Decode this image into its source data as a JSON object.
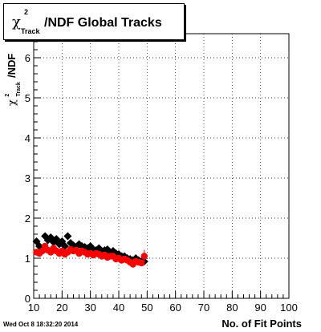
{
  "title": {
    "symbol": "χ",
    "sup": "2",
    "sub": "Track",
    "rest": "/NDF  Global Tracks"
  },
  "ylabel": {
    "symbol": "χ",
    "sup": "2",
    "sub": "Track",
    "rest": "/NDF"
  },
  "xlabel": "No. of Fit Points",
  "datestamp": "Wed Oct  8 18:32:20 2014",
  "colors": {
    "series1": "#000000",
    "series2": "#ff0000"
  },
  "chart_data": {
    "type": "scatter",
    "xlim": [
      10,
      100
    ],
    "ylim": [
      0,
      6.6
    ],
    "xticks": [
      10,
      20,
      30,
      40,
      50,
      60,
      70,
      80,
      90,
      100
    ],
    "yticks": [
      0,
      1,
      2,
      3,
      4,
      5,
      6
    ],
    "grid": true,
    "series": [
      {
        "marker": "diamond",
        "color": "#000000",
        "x": [
          11,
          12,
          13,
          14,
          15,
          16,
          17,
          18,
          19,
          20,
          21,
          22,
          23,
          24,
          25,
          26,
          27,
          28,
          29,
          30,
          31,
          32,
          33,
          34,
          35,
          36,
          37,
          38,
          39,
          40,
          41,
          42,
          43,
          44,
          45,
          46,
          47,
          48,
          49
        ],
        "y": [
          1.42,
          1.3,
          1.25,
          1.55,
          1.45,
          1.52,
          1.4,
          1.48,
          1.35,
          1.42,
          1.3,
          1.55,
          1.38,
          1.32,
          1.28,
          1.35,
          1.3,
          1.28,
          1.25,
          1.3,
          1.22,
          1.2,
          1.25,
          1.18,
          1.2,
          1.22,
          1.15,
          1.18,
          1.12,
          1.1,
          1.05,
          1.05,
          1.0,
          0.98,
          0.95,
          1.0,
          0.95,
          0.92,
          0.92
        ]
      },
      {
        "marker": "circle",
        "color": "#ff0000",
        "x": [
          11,
          12,
          13,
          14,
          15,
          16,
          17,
          18,
          19,
          20,
          21,
          22,
          23,
          24,
          25,
          26,
          27,
          28,
          29,
          30,
          31,
          32,
          33,
          34,
          35,
          36,
          37,
          38,
          39,
          40,
          41,
          42,
          43,
          44,
          45,
          46,
          47,
          48,
          49
        ],
        "y": [
          1.15,
          1.12,
          1.18,
          1.3,
          1.2,
          1.15,
          1.25,
          1.18,
          1.12,
          1.18,
          1.1,
          1.15,
          1.22,
          1.18,
          1.2,
          1.12,
          1.18,
          1.15,
          1.1,
          1.12,
          1.08,
          1.12,
          1.1,
          1.05,
          1.08,
          1.02,
          1.05,
          1.05,
          0.98,
          1.0,
          0.95,
          0.98,
          0.95,
          0.9,
          0.85,
          0.92,
          0.9,
          0.88,
          1.05
        ]
      }
    ]
  }
}
